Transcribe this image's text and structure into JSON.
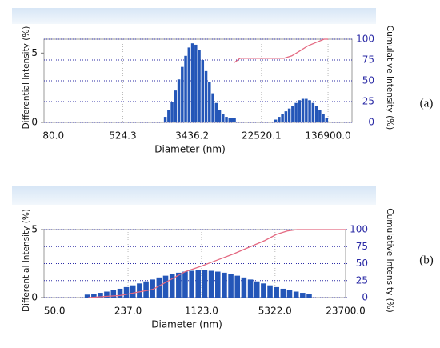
{
  "chart_data": [
    {
      "type": "bar",
      "label": "(a)",
      "xlabel": "Diameter (nm)",
      "ylabel": "Differential Intensity (%)",
      "y2label": "Cumulative Intensity (%)",
      "xscale": "log",
      "grid": true,
      "xlim": [
        62,
        262000
      ],
      "xticks": [
        {
          "value": 80,
          "label": "80.0"
        },
        {
          "value": 524.3,
          "label": "524.3"
        },
        {
          "value": 3436.2,
          "label": "3436.2"
        },
        {
          "value": 22520.1,
          "label": "22520.1"
        },
        {
          "value": 136900,
          "label": "136900.0"
        }
      ],
      "ylim": [
        0,
        6
      ],
      "yticks": [
        0,
        5
      ],
      "y2lim": [
        0,
        100
      ],
      "y2ticks": [
        0,
        25,
        50,
        75,
        100
      ],
      "y2_color": "#2b2ba6",
      "series": [
        {
          "type": "bar",
          "color": "#2456b8",
          "x": [
            1660,
            1820,
            1995,
            2188,
            2399,
            2630,
            2884,
            3162,
            3467,
            3802,
            4169,
            4571,
            5012,
            5495,
            6026,
            6607,
            7244,
            7943,
            8710,
            9550,
            10471,
            33113,
            36308,
            39811,
            43652,
            47863,
            52481,
            57544,
            63096,
            69183,
            75858,
            83176,
            91201,
            100000,
            109648,
            120226,
            131826
          ],
          "values": [
            0.4,
            0.9,
            1.5,
            2.3,
            3.1,
            4.0,
            4.8,
            5.4,
            5.7,
            5.6,
            5.2,
            4.5,
            3.7,
            2.9,
            2.1,
            1.4,
            0.9,
            0.6,
            0.4,
            0.3,
            0.3,
            0.2,
            0.4,
            0.6,
            0.8,
            1.0,
            1.2,
            1.4,
            1.6,
            1.7,
            1.7,
            1.6,
            1.4,
            1.2,
            0.9,
            0.6,
            0.3
          ]
        },
        {
          "type": "line",
          "axis": "y2",
          "color": "#e46a82",
          "x": [
            10800,
            12600,
            41400,
            51300,
            64000,
            79400,
            98600,
            123000,
            136900
          ],
          "values": [
            72,
            77,
            77,
            80,
            86,
            92,
            96,
            100,
            100
          ]
        }
      ]
    },
    {
      "type": "bar",
      "label": "(b)",
      "xlabel": "Diameter (nm)",
      "ylabel": "Differential Intensity (%)",
      "y2label": "Cumulative Intensity (%)",
      "xscale": "log",
      "grid": true,
      "xlim": [
        40,
        23700
      ],
      "xticks": [
        {
          "value": 50,
          "label": "50.0"
        },
        {
          "value": 237,
          "label": "237.0"
        },
        {
          "value": 1123,
          "label": "1123.0"
        },
        {
          "value": 5322,
          "label": "5322.0"
        },
        {
          "value": 23700,
          "label": "23700.0"
        }
      ],
      "ylim": [
        0,
        5
      ],
      "yticks": [
        0,
        5
      ],
      "y2lim": [
        0,
        100
      ],
      "y2ticks": [
        0,
        25,
        50,
        75,
        100
      ],
      "y2_color": "#2b2ba6",
      "series": [
        {
          "type": "bar",
          "color": "#2456b8",
          "x": [
            100,
            115,
            132,
            151,
            174,
            200,
            229,
            263,
            302,
            347,
            398,
            457,
            525,
            603,
            692,
            794,
            912,
            1047,
            1202,
            1380,
            1585,
            1820,
            2089,
            2399,
            2754,
            3162,
            3631,
            4169,
            4786,
            5495,
            6310,
            7244,
            8318,
            9550,
            10965
          ],
          "values": [
            0.22,
            0.28,
            0.35,
            0.44,
            0.54,
            0.65,
            0.77,
            0.9,
            1.04,
            1.19,
            1.33,
            1.48,
            1.61,
            1.73,
            1.83,
            1.91,
            1.97,
            2.0,
            2.0,
            1.97,
            1.91,
            1.83,
            1.73,
            1.61,
            1.48,
            1.33,
            1.19,
            1.04,
            0.9,
            0.77,
            0.65,
            0.54,
            0.44,
            0.35,
            0.28
          ]
        },
        {
          "type": "line",
          "axis": "y2",
          "color": "#e46a82",
          "x": [
            102,
            200,
            400,
            790,
            1110,
            1550,
            2190,
            3060,
            4300,
            5500,
            6900,
            8500,
            23700
          ],
          "values": [
            0,
            3,
            12,
            38,
            46,
            55,
            64,
            74,
            84,
            93,
            98,
            100,
            100
          ]
        }
      ]
    }
  ]
}
